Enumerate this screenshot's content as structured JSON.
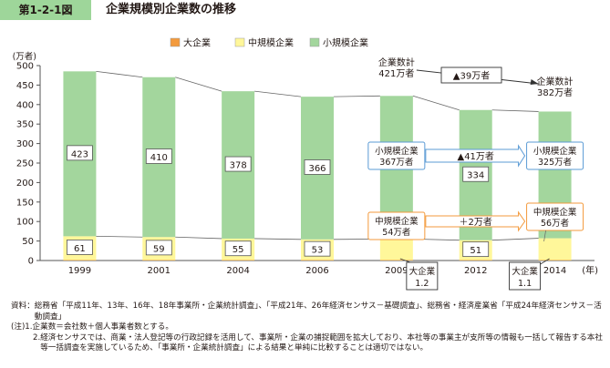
{
  "header": {
    "figure_label": "第1-2-1図",
    "title": "企業規模別企業数の推移"
  },
  "chart_data": {
    "type": "bar",
    "stacked": true,
    "unit_label": "(万者)",
    "x_unit_label": "(年)",
    "categories": [
      "1999",
      "2001",
      "2004",
      "2006",
      "2009",
      "2012",
      "2014"
    ],
    "ylim": [
      0,
      500
    ],
    "yticks": [
      "0",
      "50",
      "100",
      "150",
      "200",
      "250",
      "300",
      "350",
      "400",
      "450",
      "500"
    ],
    "grid": false,
    "legend_position": "top-center",
    "series": [
      {
        "name": "大企業",
        "color": "#f39a3c",
        "values": [
          1.2,
          1.2,
          1.2,
          1.2,
          1.2,
          1.1,
          1.1
        ]
      },
      {
        "name": "中規模企業",
        "color": "#fff79a",
        "values": [
          61,
          59,
          55,
          53,
          54,
          51,
          56
        ]
      },
      {
        "name": "小規模企業",
        "color": "#a3d69d",
        "values": [
          423,
          410,
          378,
          366,
          367,
          334,
          325
        ]
      }
    ],
    "data_labels": {
      "mid": [
        "61",
        "59",
        "55",
        "53",
        "",
        "51",
        ""
      ],
      "small": [
        "423",
        "410",
        "378",
        "366",
        "",
        "334",
        ""
      ]
    },
    "annotations": {
      "total_2009": "企業数計\n421万者",
      "total_2014": "企業数計\n382万者",
      "total_change": "▲39万者",
      "small_2009": "小規模企業\n367万者",
      "small_2014": "小規模企業\n325万者",
      "small_change": "▲41万者",
      "mid_2009": "中規模企業\n54万者",
      "mid_2014": "中規模企業\n56万者",
      "mid_change": "＋2万者",
      "large_2009": "大企業\n1.2",
      "large_2014": "大企業\n1.1"
    },
    "colors": {
      "arrow_blue": "#5b9bd5",
      "arrow_orange": "#f39a3c",
      "line": "#666666"
    }
  },
  "notes": [
    {
      "key": "資料：",
      "text": "総務省「平成11年、13年、16年、18年事業所・企業統計調査」、「平成21年、26年経済センサス－基礎調査」、総務省・経済産業省「平成24年経済センサス－活動調査」"
    },
    {
      "key": "(注)1.",
      "text": "企業数＝会社数＋個人事業者数とする。"
    },
    {
      "key": "2.",
      "text": "経済センサスでは、商業・法人登記等の行政記録を活用して、事業所・企業の捕捉範囲を拡大しており、本社等の事業主が支所等の情報も一括して報告する本社等一括調査を実施しているため、「事業所・企業統計調査」による結果と単純に比較することは適切ではない。"
    }
  ]
}
